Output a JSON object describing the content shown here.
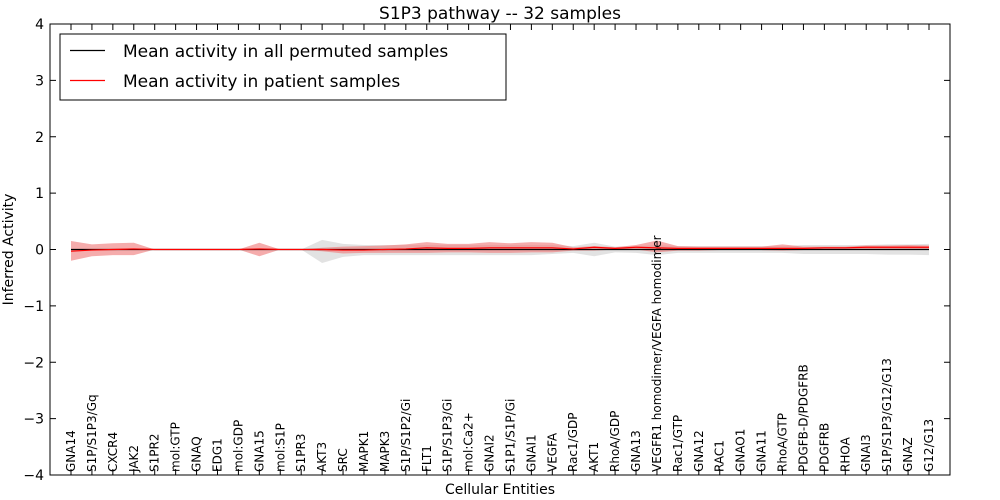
{
  "chart_data": {
    "type": "line",
    "title": "S1P3 pathway -- 32 samples",
    "xlabel": "Cellular Entities",
    "ylabel": "Inferred Activity",
    "ylim": [
      -4,
      4
    ],
    "yticks": [
      4,
      3,
      2,
      1,
      0,
      -1,
      -2,
      -3,
      -4
    ],
    "ytick_labels": [
      "4",
      "3",
      "2",
      "1",
      "0",
      "−1",
      "−2",
      "−3",
      "−4"
    ],
    "categories": [
      "GNA14",
      "S1P/S1P3/Gq",
      "CXCR4",
      "JAK2",
      "S1PR2",
      "mol:GTP",
      "GNAQ",
      "EDG1",
      "mol:GDP",
      "GNA15",
      "mol:S1P",
      "S1PR3",
      "AKT3",
      "SRC",
      "MAPK1",
      "MAPK3",
      "S1P/S1P2/Gi",
      "FLT1",
      "S1P/S1P3/Gi",
      "mol:Ca2+",
      "GNAI2",
      "S1P1/S1P/Gi",
      "GNAI1",
      "VEGFA",
      "Rac1/GDP",
      "AKT1",
      "RhoA/GDP",
      "GNA13",
      "VEGFR1 homodimer/VEGFA homodimer",
      "Rac1/GTP",
      "GNA12",
      "RAC1",
      "GNAO1",
      "GNA11",
      "RhoA/GTP",
      "PDGFB-D/PDGFRB",
      "PDGFRB",
      "RHOA",
      "GNAI3",
      "S1P/S1P3/G12/G13",
      "GNAZ",
      "G12/G13"
    ],
    "series": [
      {
        "name": "Mean activity in all permuted samples",
        "color": "#000000",
        "band_color": "#bfbfbf",
        "values": [
          0,
          0,
          0,
          0,
          0,
          0,
          0,
          0,
          0,
          0,
          0,
          0,
          0,
          0,
          0,
          0,
          0,
          0,
          0,
          0,
          0,
          0,
          0,
          0,
          0,
          0,
          0,
          0,
          0,
          0,
          0,
          0,
          0,
          0,
          0,
          0,
          0,
          0,
          0,
          0,
          0,
          0
        ],
        "upper": [
          0,
          0,
          0,
          0,
          0,
          0,
          0,
          0,
          0,
          0,
          0,
          0,
          0.17,
          0.1,
          0.08,
          0.08,
          0.08,
          0.08,
          0.08,
          0.08,
          0.08,
          0.08,
          0.08,
          0.08,
          0.06,
          0.12,
          0.05,
          0.06,
          0.08,
          0.06,
          0.06,
          0.06,
          0.06,
          0.06,
          0.06,
          0.08,
          0.08,
          0.08,
          0.08,
          0.09,
          0.09,
          0.1
        ],
        "lower": [
          0,
          0,
          0,
          0,
          0,
          0,
          0,
          0,
          0,
          0,
          0,
          0,
          -0.24,
          -0.13,
          -0.1,
          -0.1,
          -0.1,
          -0.1,
          -0.1,
          -0.1,
          -0.1,
          -0.1,
          -0.1,
          -0.08,
          -0.06,
          -0.12,
          -0.05,
          -0.06,
          -0.1,
          -0.06,
          -0.06,
          -0.06,
          -0.06,
          -0.06,
          -0.06,
          -0.08,
          -0.08,
          -0.08,
          -0.08,
          -0.09,
          -0.09,
          -0.1
        ]
      },
      {
        "name": "Mean activity in patient samples",
        "color": "#ff0000",
        "band_color": "#f08080",
        "values": [
          -0.03,
          -0.01,
          0,
          0.01,
          0,
          0,
          0,
          0,
          0,
          0.01,
          0,
          0,
          0,
          -0.01,
          -0.01,
          0,
          0.01,
          0.03,
          0.02,
          0.02,
          0.03,
          0.03,
          0.03,
          0.03,
          0.01,
          0.04,
          0.02,
          0.04,
          0.03,
          0.02,
          0.02,
          0.02,
          0.02,
          0.02,
          0.02,
          0.02,
          0.03,
          0.03,
          0.04,
          0.04,
          0.04,
          0.04
        ],
        "upper": [
          0.15,
          0.09,
          0.11,
          0.12,
          0,
          0,
          0,
          0,
          0,
          0.12,
          0,
          0,
          0.03,
          0.05,
          0.06,
          0.07,
          0.09,
          0.13,
          0.1,
          0.1,
          0.13,
          0.11,
          0.13,
          0.12,
          0.04,
          0.06,
          0.04,
          0.08,
          0.16,
          0.06,
          0.05,
          0.05,
          0.05,
          0.05,
          0.09,
          0.05,
          0.05,
          0.05,
          0.07,
          0.07,
          0.08,
          0.07
        ],
        "lower": [
          -0.2,
          -0.12,
          -0.1,
          -0.1,
          0,
          0,
          0,
          0,
          0,
          -0.12,
          0,
          0,
          -0.03,
          -0.07,
          -0.06,
          -0.06,
          -0.06,
          -0.06,
          -0.05,
          -0.05,
          -0.06,
          -0.06,
          -0.05,
          -0.05,
          -0.02,
          -0.02,
          0,
          0,
          -0.05,
          -0.02,
          -0.02,
          -0.01,
          -0.01,
          -0.01,
          -0.02,
          -0.01,
          0,
          0,
          0.01,
          0.01,
          0.01,
          0.01
        ]
      }
    ],
    "legend": {
      "position": "top-left",
      "entries": [
        "Mean activity in all permuted samples",
        "Mean activity in patient samples"
      ]
    },
    "grid": false
  }
}
